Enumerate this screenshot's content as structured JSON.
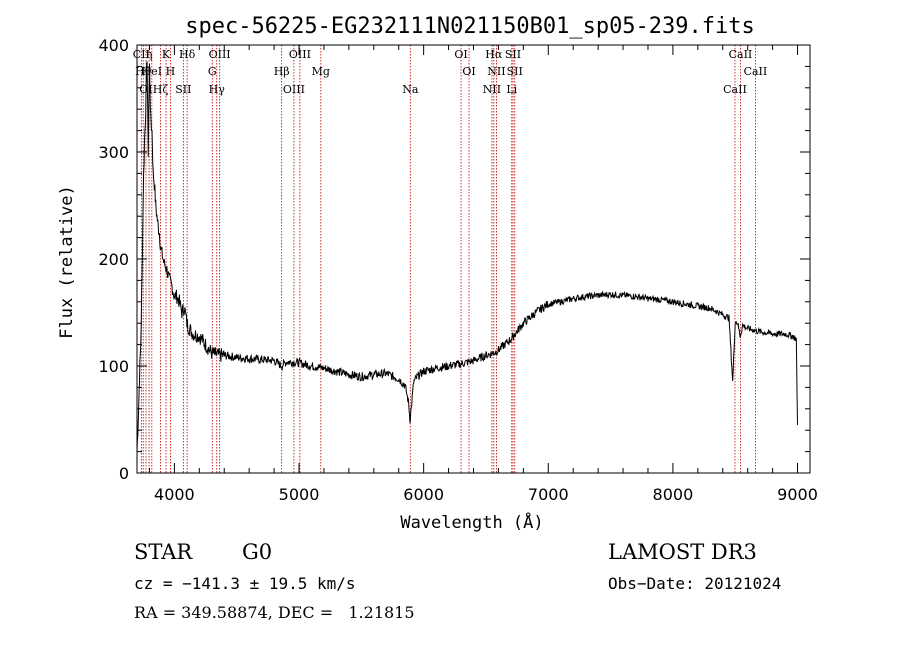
{
  "chart_data": {
    "type": "line",
    "title": "spec-56225-EG232111N021150B01_sp05-239.fits",
    "xlabel": "Wavelength (Å)",
    "ylabel": "Flux (relative)",
    "xlim": [
      3700,
      9100
    ],
    "ylim": [
      0,
      400
    ],
    "xticks": [
      4000,
      5000,
      6000,
      7000,
      8000,
      9000
    ],
    "yticks": [
      0,
      100,
      200,
      300,
      400
    ],
    "grid": false,
    "series": [
      {
        "values_x": [
          3700,
          3710,
          3720,
          3730,
          3740,
          3750,
          3760,
          3770,
          3780,
          3790,
          3800,
          3810,
          3820,
          3830,
          3840,
          3850,
          3860,
          3870,
          3880,
          3890,
          3900,
          3920,
          3940,
          3960,
          3980,
          4000,
          4020,
          4040,
          4060,
          4080,
          4100,
          4120,
          4150,
          4200,
          4250,
          4300,
          4350,
          4400,
          4500,
          4600,
          4700,
          4800,
          4860,
          4900,
          5000,
          5100,
          5200,
          5300,
          5400,
          5500,
          5600,
          5700,
          5800,
          5850,
          5880,
          5890,
          5900,
          5920,
          5950,
          6000,
          6100,
          6200,
          6300,
          6400,
          6500,
          6560,
          6600,
          6700,
          6800,
          6900,
          7000,
          7100,
          7200,
          7300,
          7400,
          7500,
          7600,
          7700,
          7800,
          7900,
          8000,
          8100,
          8200,
          8300,
          8400,
          8450,
          8480,
          8500,
          8520,
          8540,
          8560,
          8600,
          8700,
          8800,
          8900,
          8960,
          8990,
          9000
        ],
        "values_y": [
          20,
          50,
          90,
          120,
          180,
          260,
          310,
          340,
          390,
          300,
          380,
          330,
          320,
          280,
          270,
          250,
          240,
          230,
          225,
          210,
          205,
          195,
          190,
          180,
          175,
          165,
          165,
          160,
          150,
          155,
          140,
          135,
          130,
          128,
          120,
          112,
          110,
          110,
          108,
          107,
          106,
          105,
          100,
          104,
          103,
          100,
          98,
          95,
          92,
          90,
          92,
          93,
          88,
          82,
          65,
          50,
          60,
          85,
          90,
          95,
          98,
          100,
          102,
          105,
          110,
          112,
          115,
          125,
          140,
          150,
          158,
          160,
          163,
          165,
          166,
          167,
          166,
          165,
          163,
          162,
          160,
          158,
          156,
          154,
          148,
          145,
          85,
          142,
          140,
          128,
          138,
          135,
          132,
          130,
          130,
          128,
          125,
          45
        ]
      }
    ],
    "lines": [
      {
        "x": 3735,
        "label": "CII"
      },
      {
        "x": 3750,
        "label": "Hθ"
      },
      {
        "x": 3772,
        "label": "OI"
      },
      {
        "x": 3797,
        "label": "η"
      },
      {
        "x": 3819,
        "label": "HeI"
      },
      {
        "x": 3889,
        "label": "Hζ"
      },
      {
        "x": 3933,
        "label": "K"
      },
      {
        "x": 3968,
        "label": "H"
      },
      {
        "x": 4072,
        "label": "SII"
      },
      {
        "x": 4102,
        "label": "Hδ"
      },
      {
        "x": 4304,
        "label": "G"
      },
      {
        "x": 4340,
        "label": "Hγ"
      },
      {
        "x": 4363,
        "label": "OIII"
      },
      {
        "x": 4861,
        "label": "Hβ"
      },
      {
        "x": 4959,
        "label": "OIII"
      },
      {
        "x": 5007,
        "label": "OIII"
      },
      {
        "x": 5175,
        "label": "Mg"
      },
      {
        "x": 5893,
        "label": "Na"
      },
      {
        "x": 6300,
        "label": "OI"
      },
      {
        "x": 6364,
        "label": "OI"
      },
      {
        "x": 6548,
        "label": "NII"
      },
      {
        "x": 6563,
        "label": "Hα"
      },
      {
        "x": 6584,
        "label": "NII"
      },
      {
        "x": 6707,
        "label": "Li"
      },
      {
        "x": 6717,
        "label": "SII"
      },
      {
        "x": 6731,
        "label": "SII"
      },
      {
        "x": 8498,
        "label": "CaII"
      },
      {
        "x": 8542,
        "label": "CaII"
      },
      {
        "x": 8662,
        "label": "CaII"
      }
    ]
  },
  "annotations": {
    "class": "STAR",
    "subclass": "G0",
    "survey": "LAMOST DR3",
    "cz": "cz = −141.3 ± 19.5 km/s",
    "obs_date": "Obs−Date: 20121024",
    "coords": "RA = 349.58874, DEC =   1.21815"
  },
  "colors": {
    "spectrum": "#000000",
    "line_markers": "#c00000",
    "axes": "#000000"
  }
}
